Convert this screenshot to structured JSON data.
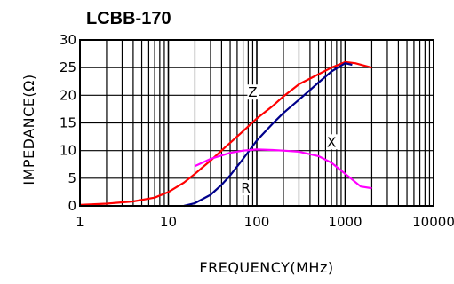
{
  "chart_data": {
    "type": "line",
    "title": "LCBB-170",
    "xlabel": "FREQUENCY(MHz)",
    "ylabel": "IMPEDANCE(Ω)",
    "xscale": "log",
    "xlim": [
      1,
      10000
    ],
    "ylim": [
      0,
      30
    ],
    "xticks": [
      "1",
      "10",
      "100",
      "1000",
      "10000"
    ],
    "yticks": [
      "0",
      "5",
      "10",
      "15",
      "20",
      "25",
      "30"
    ],
    "grid": true,
    "series": [
      {
        "name": "Z",
        "color": "#ff0000",
        "x": [
          1,
          2,
          4,
          7,
          10,
          15,
          20,
          30,
          50,
          70,
          100,
          150,
          200,
          300,
          500,
          700,
          1000,
          1300,
          1700,
          2000
        ],
        "y": [
          0.2,
          0.4,
          0.8,
          1.5,
          2.5,
          4.2,
          5.8,
          8.2,
          11.4,
          13.5,
          15.8,
          18.0,
          19.8,
          22.0,
          23.8,
          25.0,
          26.0,
          25.8,
          25.3,
          25.0
        ]
      },
      {
        "name": "R",
        "color": "#00008b",
        "x": [
          15,
          20,
          30,
          40,
          50,
          70,
          100,
          150,
          200,
          300,
          500,
          700,
          1000,
          1200
        ],
        "y": [
          0,
          0.5,
          2.0,
          3.8,
          5.5,
          8.5,
          11.8,
          14.8,
          16.8,
          19.2,
          22.3,
          24.3,
          25.8,
          25.5
        ]
      },
      {
        "name": "X",
        "color": "#ff00ff",
        "x": [
          20,
          30,
          50,
          70,
          100,
          150,
          200,
          300,
          500,
          700,
          1000,
          1500,
          2000
        ],
        "y": [
          7.2,
          8.5,
          9.6,
          10.0,
          10.2,
          10.1,
          10.0,
          9.8,
          9.0,
          7.8,
          5.8,
          3.5,
          3.2
        ]
      }
    ],
    "annotations": [
      {
        "text": "Z",
        "x": 90,
        "y": 20.5
      },
      {
        "text": "R",
        "x": 75,
        "y": 3.2
      },
      {
        "text": "X",
        "x": 700,
        "y": 11.5
      }
    ]
  }
}
